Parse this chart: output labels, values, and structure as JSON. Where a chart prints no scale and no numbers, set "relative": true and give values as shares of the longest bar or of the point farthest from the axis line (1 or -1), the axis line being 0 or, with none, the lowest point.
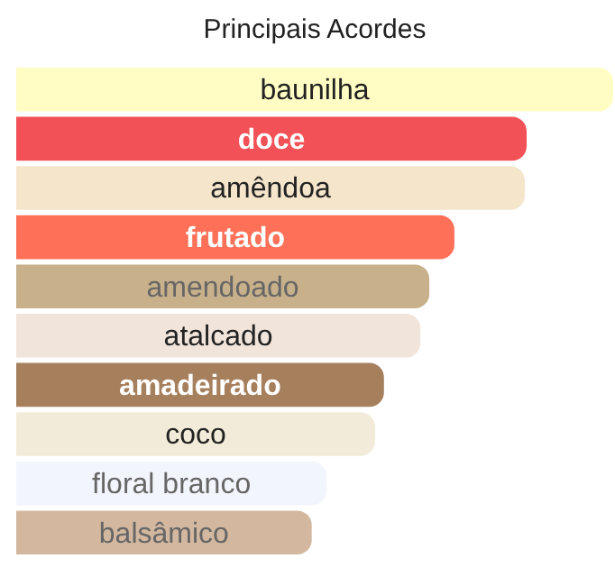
{
  "chart_data": {
    "type": "bar",
    "orientation": "horizontal",
    "relative": true,
    "title": "Principais Acordes",
    "categories": [
      "baunilha",
      "doce",
      "amêndoa",
      "frutado",
      "amendoado",
      "atalcado",
      "amadeirado",
      "coco",
      "floral branco",
      "balsâmico"
    ],
    "values": [
      1,
      0.855,
      0.852,
      0.734,
      0.692,
      0.677,
      0.616,
      0.601,
      0.52,
      0.495
    ],
    "colors": [
      "#fffdc3",
      "#f25257",
      "#f4e5cb",
      "#fe7158",
      "#c8b08a",
      "#f1e4da",
      "#a67f5d",
      "#f3ebd9",
      "#f3f5fc",
      "#d3b89f"
    ]
  }
}
